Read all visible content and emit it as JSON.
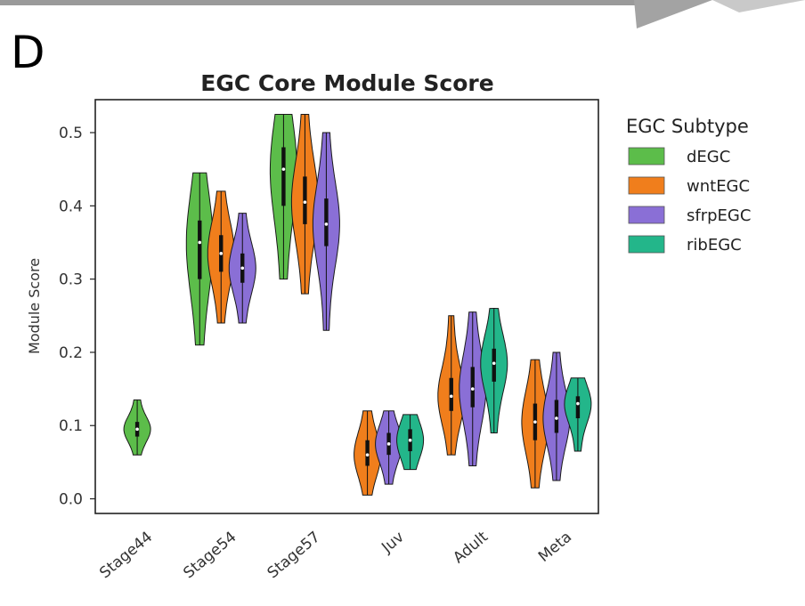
{
  "panel_letter": "D",
  "chart_data": {
    "type": "violin",
    "title": "EGC Core Module Score",
    "xlabel": "",
    "ylabel": "Module Score",
    "ylim": [
      -0.02,
      0.545
    ],
    "yticks": [
      0.0,
      0.1,
      0.2,
      0.3,
      0.4,
      0.5
    ],
    "ytick_labels": [
      "0.0",
      "0.1",
      "0.2",
      "0.3",
      "0.4",
      "0.5"
    ],
    "categories": [
      "Stage44",
      "Stage54",
      "Stage57",
      "Juv",
      "Adult",
      "Meta"
    ],
    "legend": {
      "title": "EGC Subtype",
      "position": "right-outside",
      "entries": [
        {
          "name": "dEGC",
          "color": "#5cbd4a"
        },
        {
          "name": "wntEGC",
          "color": "#f07e1c"
        },
        {
          "name": "sfrpEGC",
          "color": "#8a6fd6"
        },
        {
          "name": "ribEGC",
          "color": "#23b68a"
        }
      ]
    },
    "series": [
      {
        "name": "dEGC",
        "color": "#5cbd4a",
        "values": [
          {
            "category": "Stage44",
            "min": 0.06,
            "q1": 0.085,
            "median": 0.095,
            "q3": 0.105,
            "max": 0.135
          },
          {
            "category": "Stage54",
            "min": 0.21,
            "q1": 0.3,
            "median": 0.35,
            "q3": 0.38,
            "max": 0.445
          },
          {
            "category": "Stage57",
            "min": 0.3,
            "q1": 0.4,
            "median": 0.45,
            "q3": 0.48,
            "max": 0.525
          }
        ]
      },
      {
        "name": "wntEGC",
        "color": "#f07e1c",
        "values": [
          {
            "category": "Stage54",
            "min": 0.24,
            "q1": 0.31,
            "median": 0.335,
            "q3": 0.36,
            "max": 0.42
          },
          {
            "category": "Stage57",
            "min": 0.28,
            "q1": 0.375,
            "median": 0.405,
            "q3": 0.44,
            "max": 0.525
          },
          {
            "category": "Juv",
            "min": 0.005,
            "q1": 0.045,
            "median": 0.06,
            "q3": 0.08,
            "max": 0.12
          },
          {
            "category": "Adult",
            "min": 0.06,
            "q1": 0.12,
            "median": 0.14,
            "q3": 0.165,
            "max": 0.25
          },
          {
            "category": "Meta",
            "min": 0.015,
            "q1": 0.08,
            "median": 0.105,
            "q3": 0.13,
            "max": 0.19
          }
        ]
      },
      {
        "name": "sfrpEGC",
        "color": "#8a6fd6",
        "values": [
          {
            "category": "Stage54",
            "min": 0.24,
            "q1": 0.295,
            "median": 0.315,
            "q3": 0.335,
            "max": 0.39
          },
          {
            "category": "Stage57",
            "min": 0.23,
            "q1": 0.345,
            "median": 0.375,
            "q3": 0.41,
            "max": 0.5
          },
          {
            "category": "Juv",
            "min": 0.02,
            "q1": 0.06,
            "median": 0.075,
            "q3": 0.09,
            "max": 0.12
          },
          {
            "category": "Adult",
            "min": 0.045,
            "q1": 0.125,
            "median": 0.15,
            "q3": 0.18,
            "max": 0.255
          },
          {
            "category": "Meta",
            "min": 0.025,
            "q1": 0.09,
            "median": 0.11,
            "q3": 0.135,
            "max": 0.2
          }
        ]
      },
      {
        "name": "ribEGC",
        "color": "#23b68a",
        "values": [
          {
            "category": "Juv",
            "min": 0.04,
            "q1": 0.065,
            "median": 0.08,
            "q3": 0.095,
            "max": 0.115
          },
          {
            "category": "Adult",
            "min": 0.09,
            "q1": 0.16,
            "median": 0.185,
            "q3": 0.205,
            "max": 0.26
          },
          {
            "category": "Meta",
            "min": 0.065,
            "q1": 0.11,
            "median": 0.13,
            "q3": 0.14,
            "max": 0.165
          }
        ]
      }
    ]
  }
}
